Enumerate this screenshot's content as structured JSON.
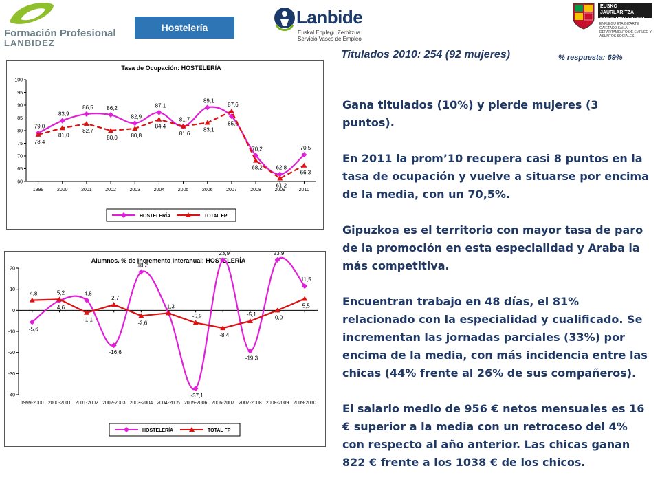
{
  "header": {
    "fp_logo_line1": "Formación Profesional",
    "fp_logo_line2": "LANBIDEZ",
    "section_tag": "Hostelería",
    "lanbide_word": "Lanbide",
    "lanbide_sub1": "Euskal Enplegu Zerbitzua",
    "lanbide_sub2": "Servicio Vasco de Empleo",
    "gv_line1": "EUSKO JAURLARITZA",
    "gv_line2": "GOBIERNO VASCO",
    "gv_small1": "ENPLEGU ETA GIZARTE GAIETAKO SAILA",
    "gv_small2": "DEPARTAMENTO DE EMPLEO Y ASUNTOS SOCIALES"
  },
  "summary": {
    "titulados": "Titulados 2010: 254 (92 mujeres)",
    "respuesta": "% respuesta: 69%"
  },
  "paragraphs": [
    "Gana titulados (10%) y pierde mujeres (3 puntos).",
    "En 2011 la prom’10 recupera casi 8 puntos en la tasa de ocupación y vuelve a situarse por encima de la media, con un 70,5%.",
    "Gipuzkoa es el territorio con mayor tasa de paro de la promoción en esta especialidad y Araba la más competitiva.",
    "Encuentran trabajo en 48 días, el 81% relacionado con la especialidad y cualificado. Se incrementan las jornadas parciales (33%) por encima de la media, con más incidencia entre las chicas (44% frente al 26% de sus compañeros).",
    "El salario medio de 956 € netos mensuales es 16 € superior a la media con un retroceso del 4% con respecto al año anterior. Las chicas ganan 822 € frente a los 1038 € de los chicos."
  ],
  "colors": {
    "hosteleria": "#e020d8",
    "total_fp": "#dd1111",
    "tag_bg": "#2e75b6",
    "text": "#1f3864"
  },
  "chart_data": [
    {
      "type": "line",
      "title": "Tasa de Ocupación: HOSTELERÍA",
      "categories": [
        "1999",
        "2000",
        "2001",
        "2002",
        "2003",
        "2004",
        "2005",
        "2006",
        "2007",
        "2008",
        "2009",
        "2010"
      ],
      "series": [
        {
          "name": "HOSTELERÍA",
          "values": [
            79.0,
            83.9,
            86.5,
            86.2,
            82.9,
            87.1,
            81.6,
            89.1,
            85.6,
            70.2,
            62.8,
            70.5
          ],
          "labels": [
            "79,0",
            "83,9",
            "86,5",
            "86,2",
            "82,9",
            "87,1",
            "81,6",
            "89,1",
            "85,6",
            "70,2",
            "62,8",
            "70,5"
          ]
        },
        {
          "name": "TOTAL FP",
          "values": [
            78.4,
            81.0,
            82.7,
            80.0,
            80.8,
            84.4,
            81.7,
            83.1,
            87.6,
            68.2,
            61.2,
            66.3
          ],
          "labels": [
            "78,4",
            "81,0",
            "82,7",
            "80,0",
            "80,8",
            "84,4",
            "81,7",
            "83,1",
            "87,6",
            "68,2",
            "61,2",
            "66,3"
          ]
        }
      ],
      "yticks": [
        "100",
        "95",
        "90",
        "85",
        "80",
        "75",
        "70",
        "65",
        "60"
      ],
      "ylim": [
        60,
        100
      ],
      "grid": false,
      "legend": "bottom"
    },
    {
      "type": "line",
      "title": "Alumnos. % de Incremento interanual: HOSTELERÍA",
      "categories": [
        "1999-2000",
        "2000-2001",
        "2001-2002",
        "2002-2003",
        "2003-2004",
        "2004-2005",
        "2005-2006",
        "2006-2007",
        "2007-2008",
        "2008-2009",
        "2009-2010"
      ],
      "series": [
        {
          "name": "HOSTELERÍA",
          "values": [
            -5.6,
            4.6,
            4.8,
            -16.6,
            18.2,
            -1.3,
            -37.1,
            23.9,
            -19.3,
            23.9,
            11.5
          ],
          "labels": [
            "-5,6",
            "4,6",
            "4,8",
            "-16,6",
            "18,2",
            "-1,3",
            "-37,1",
            "23,9",
            "-19,3",
            "23,9",
            "11,5"
          ]
        },
        {
          "name": "TOTAL FP",
          "values": [
            4.8,
            5.2,
            -1.1,
            2.7,
            -2.6,
            -1.3,
            -5.9,
            -8.4,
            -5.1,
            0.0,
            5.5
          ],
          "labels": [
            "4,8",
            "5,2",
            "-1,1",
            "2,7",
            "-2,6",
            "",
            "-5,9",
            "-8,4",
            "-5,1",
            "0,0",
            "5,5"
          ]
        }
      ],
      "yticks": [
        "20",
        "10",
        "0",
        "-10",
        "-20",
        "-30",
        "-40"
      ],
      "ylim": [
        -40,
        20
      ],
      "grid": false,
      "legend": "bottom"
    }
  ]
}
